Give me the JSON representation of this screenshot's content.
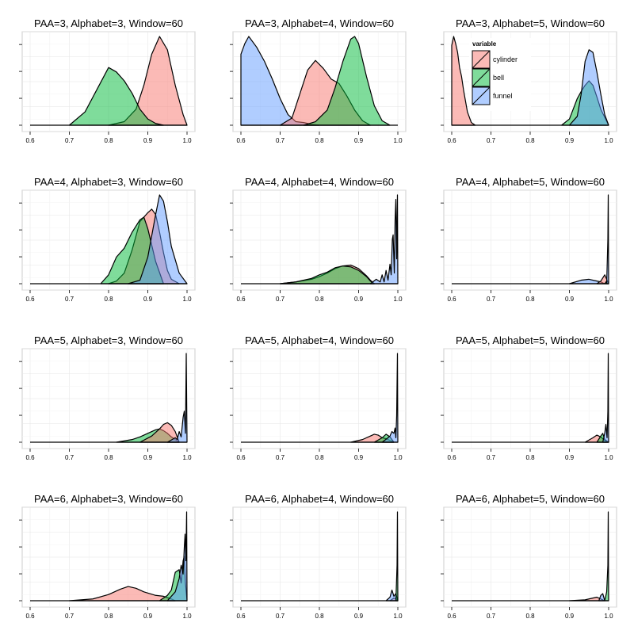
{
  "figure": {
    "colors": {
      "cylinder": "#F8766D",
      "bell": "#00BA38",
      "funnel": "#619CFF"
    },
    "fill_opacity": 0.5
  },
  "chart_data": [
    {
      "type": "area",
      "title": "PAA=3, Alphabet=3, Window=60",
      "xlim": [
        0.6,
        1.0
      ],
      "x_ticks": [
        "0.6",
        "0.7",
        "0.8",
        "0.9",
        "1.0"
      ],
      "grid": true,
      "y_ticks_labeled": false,
      "series": [
        {
          "name": "cylinder",
          "x": [
            0.8,
            0.84,
            0.87,
            0.89,
            0.91,
            0.93,
            0.95,
            0.97,
            0.99,
            1.0
          ],
          "y": [
            0,
            0.04,
            0.18,
            0.45,
            0.8,
            1.0,
            0.85,
            0.45,
            0.12,
            0
          ]
        },
        {
          "name": "bell",
          "x": [
            0.7,
            0.74,
            0.77,
            0.8,
            0.82,
            0.84,
            0.86,
            0.88,
            0.9,
            0.92,
            0.94
          ],
          "y": [
            0,
            0.15,
            0.4,
            0.65,
            0.6,
            0.5,
            0.36,
            0.18,
            0.07,
            0.02,
            0
          ]
        }
      ]
    },
    {
      "type": "area",
      "title": "PAA=3, Alphabet=4, Window=60",
      "xlim": [
        0.6,
        1.0
      ],
      "x_ticks": [
        "0.6",
        "0.7",
        "0.8",
        "0.9",
        "1.0"
      ],
      "grid": true,
      "y_ticks_labeled": false,
      "series": [
        {
          "name": "funnel",
          "x": [
            0.6,
            0.61,
            0.62,
            0.64,
            0.66,
            0.68,
            0.7,
            0.72,
            0.74,
            0.76,
            0.78,
            0.8
          ],
          "y": [
            0.8,
            0.92,
            1.0,
            0.88,
            0.72,
            0.52,
            0.3,
            0.12,
            0.04,
            0.03,
            0.01,
            0
          ]
        },
        {
          "name": "cylinder",
          "x": [
            0.7,
            0.73,
            0.75,
            0.77,
            0.79,
            0.81,
            0.83,
            0.85,
            0.87,
            0.89,
            0.91,
            0.93
          ],
          "y": [
            0,
            0.08,
            0.35,
            0.62,
            0.73,
            0.64,
            0.52,
            0.47,
            0.33,
            0.17,
            0.05,
            0
          ]
        },
        {
          "name": "bell",
          "x": [
            0.76,
            0.79,
            0.82,
            0.84,
            0.86,
            0.88,
            0.89,
            0.9,
            0.92,
            0.94,
            0.96,
            0.98
          ],
          "y": [
            0,
            0.04,
            0.17,
            0.42,
            0.72,
            0.97,
            1.0,
            0.92,
            0.55,
            0.22,
            0.05,
            0
          ]
        }
      ]
    },
    {
      "type": "area",
      "title": "PAA=3, Alphabet=5, Window=60",
      "xlim": [
        0.6,
        1.0
      ],
      "x_ticks": [
        "0.6",
        "0.7",
        "0.8",
        "0.9",
        "1.0"
      ],
      "grid": true,
      "y_ticks_labeled": false,
      "legend": {
        "title": "variable",
        "placement": "inside-top-left",
        "items": [
          "cylinder",
          "bell",
          "funnel"
        ]
      },
      "series": [
        {
          "name": "cylinder",
          "x": [
            0.6,
            0.605,
            0.61,
            0.615,
            0.62,
            0.625,
            0.63,
            0.64,
            0.65,
            0.66
          ],
          "y": [
            0.9,
            1.0,
            0.92,
            0.82,
            0.65,
            0.55,
            0.4,
            0.15,
            0.03,
            0
          ]
        },
        {
          "name": "bell",
          "x": [
            0.88,
            0.9,
            0.92,
            0.93,
            0.94,
            0.95,
            0.96,
            0.97,
            0.98,
            1.0
          ],
          "y": [
            0,
            0.07,
            0.3,
            0.38,
            0.45,
            0.5,
            0.45,
            0.32,
            0.18,
            0
          ]
        },
        {
          "name": "funnel",
          "x": [
            0.9,
            0.92,
            0.93,
            0.94,
            0.95,
            0.96,
            0.97,
            0.98,
            0.99,
            1.0
          ],
          "y": [
            0,
            0.1,
            0.35,
            0.72,
            0.85,
            0.82,
            0.6,
            0.35,
            0.12,
            0
          ]
        }
      ]
    },
    {
      "type": "area",
      "title": "PAA=4, Alphabet=3, Window=60",
      "xlim": [
        0.6,
        1.0
      ],
      "x_ticks": [
        "0.6",
        "0.7",
        "0.8",
        "0.9",
        "1.0"
      ],
      "grid": true,
      "y_ticks_labeled": false,
      "series": [
        {
          "name": "cylinder",
          "x": [
            0.8,
            0.82,
            0.84,
            0.86,
            0.88,
            0.9,
            0.91,
            0.92,
            0.93,
            0.94,
            0.95,
            0.96,
            0.98
          ],
          "y": [
            0,
            0.03,
            0.12,
            0.38,
            0.7,
            0.8,
            0.84,
            0.78,
            0.58,
            0.35,
            0.15,
            0.05,
            0
          ]
        },
        {
          "name": "bell",
          "x": [
            0.78,
            0.8,
            0.82,
            0.84,
            0.86,
            0.88,
            0.89,
            0.9,
            0.92,
            0.94
          ],
          "y": [
            0,
            0.1,
            0.3,
            0.4,
            0.58,
            0.72,
            0.75,
            0.62,
            0.25,
            0
          ]
        },
        {
          "name": "funnel",
          "x": [
            0.85,
            0.88,
            0.9,
            0.92,
            0.93,
            0.94,
            0.95,
            0.96,
            0.98,
            1.0
          ],
          "y": [
            0,
            0.04,
            0.3,
            0.78,
            1.0,
            0.93,
            0.7,
            0.42,
            0.12,
            0
          ]
        }
      ]
    },
    {
      "type": "area",
      "title": "PAA=4, Alphabet=4, Window=60",
      "xlim": [
        0.6,
        1.0
      ],
      "x_ticks": [
        "0.6",
        "0.7",
        "0.8",
        "0.9",
        "1.0"
      ],
      "grid": true,
      "y_ticks_labeled": false,
      "series": [
        {
          "name": "cylinder",
          "x": [
            0.7,
            0.74,
            0.78,
            0.8,
            0.82,
            0.84,
            0.86,
            0.88,
            0.9,
            0.92,
            0.93,
            0.94
          ],
          "y": [
            0,
            0.02,
            0.05,
            0.08,
            0.12,
            0.17,
            0.2,
            0.21,
            0.17,
            0.09,
            0.04,
            0
          ]
        },
        {
          "name": "bell",
          "x": [
            0.7,
            0.74,
            0.78,
            0.8,
            0.82,
            0.84,
            0.86,
            0.88,
            0.9,
            0.92,
            0.93,
            0.94
          ],
          "y": [
            0,
            0.02,
            0.06,
            0.1,
            0.13,
            0.18,
            0.2,
            0.19,
            0.15,
            0.08,
            0.03,
            0
          ]
        },
        {
          "name": "funnel",
          "x": [
            0.93,
            0.945,
            0.955,
            0.96,
            0.965,
            0.97,
            0.975,
            0.98,
            0.983,
            0.986,
            0.988,
            0.991,
            0.993,
            0.995,
            0.997,
            0.999,
            1.0
          ],
          "y": [
            0,
            0.05,
            0.02,
            0.1,
            0.02,
            0.15,
            0.04,
            0.22,
            0.1,
            0.5,
            0.55,
            0.12,
            0.72,
            0.95,
            0.28,
            1.0,
            0
          ]
        }
      ]
    },
    {
      "type": "area",
      "title": "PAA=4, Alphabet=5, Window=60",
      "xlim": [
        0.6,
        1.0
      ],
      "x_ticks": [
        "0.6",
        "0.7",
        "0.8",
        "0.9",
        "1.0"
      ],
      "grid": true,
      "y_ticks_labeled": false,
      "series": [
        {
          "name": "funnel",
          "x": [
            0.9,
            0.93,
            0.95,
            0.97,
            0.98,
            0.99
          ],
          "y": [
            0,
            0.04,
            0.05,
            0.03,
            0.02,
            0
          ]
        },
        {
          "name": "cylinder",
          "x": [
            0.97,
            0.98,
            0.99,
            0.995,
            1.0
          ],
          "y": [
            0,
            0.03,
            0.1,
            0.05,
            0
          ]
        },
        {
          "name": "bell",
          "x": [
            0.99,
            0.995,
            0.998,
            1.0
          ],
          "y": [
            0,
            0.03,
            0.02,
            0
          ]
        },
        {
          "name": "funnel",
          "x": [
            0.995,
            0.998,
            0.999,
            1.0
          ],
          "y": [
            0,
            0.5,
            1.0,
            0
          ]
        }
      ]
    },
    {
      "type": "area",
      "title": "PAA=5, Alphabet=3, Window=60",
      "xlim": [
        0.6,
        1.0
      ],
      "x_ticks": [
        "0.6",
        "0.7",
        "0.8",
        "0.9",
        "1.0"
      ],
      "grid": true,
      "y_ticks_labeled": false,
      "series": [
        {
          "name": "bell",
          "x": [
            0.82,
            0.86,
            0.88,
            0.9,
            0.92,
            0.93,
            0.94,
            0.95,
            0.96,
            0.98
          ],
          "y": [
            0,
            0.03,
            0.06,
            0.1,
            0.14,
            0.15,
            0.13,
            0.1,
            0.06,
            0
          ]
        },
        {
          "name": "cylinder",
          "x": [
            0.88,
            0.91,
            0.93,
            0.94,
            0.95,
            0.96,
            0.97,
            0.98
          ],
          "y": [
            0,
            0.07,
            0.15,
            0.2,
            0.22,
            0.19,
            0.12,
            0
          ]
        },
        {
          "name": "funnel",
          "x": [
            0.95,
            0.97,
            0.975,
            0.98,
            0.985,
            0.99,
            0.993,
            0.996,
            0.998,
            1.0
          ],
          "y": [
            0,
            0.05,
            0.03,
            0.12,
            0.06,
            0.28,
            0.35,
            0.1,
            1.0,
            0
          ]
        }
      ]
    },
    {
      "type": "area",
      "title": "PAA=5, Alphabet=4, Window=60",
      "xlim": [
        0.6,
        1.0
      ],
      "x_ticks": [
        "0.6",
        "0.7",
        "0.8",
        "0.9",
        "1.0"
      ],
      "grid": true,
      "y_ticks_labeled": false,
      "series": [
        {
          "name": "cylinder",
          "x": [
            0.88,
            0.91,
            0.93,
            0.94,
            0.95,
            0.96,
            0.97,
            0.98,
            0.99
          ],
          "y": [
            0,
            0.03,
            0.07,
            0.09,
            0.08,
            0.05,
            0.04,
            0.02,
            0
          ]
        },
        {
          "name": "bell",
          "x": [
            0.94,
            0.96,
            0.97,
            0.98,
            0.99
          ],
          "y": [
            0,
            0.05,
            0.09,
            0.06,
            0
          ]
        },
        {
          "name": "funnel",
          "x": [
            0.96,
            0.975,
            0.98,
            0.985,
            0.99,
            0.993,
            0.995,
            0.997,
            0.999,
            1.0
          ],
          "y": [
            0,
            0.05,
            0.07,
            0.12,
            0.1,
            0.16,
            0.05,
            0.3,
            1.0,
            0
          ]
        }
      ]
    },
    {
      "type": "area",
      "title": "PAA=5, Alphabet=5, Window=60",
      "xlim": [
        0.6,
        1.0
      ],
      "x_ticks": [
        "0.6",
        "0.7",
        "0.8",
        "0.9",
        "1.0"
      ],
      "grid": true,
      "y_ticks_labeled": false,
      "series": [
        {
          "name": "cylinder",
          "x": [
            0.94,
            0.96,
            0.97,
            0.98,
            0.99,
            1.0
          ],
          "y": [
            0,
            0.05,
            0.08,
            0.06,
            0.02,
            0
          ]
        },
        {
          "name": "bell",
          "x": [
            0.97,
            0.98,
            0.985,
            0.99,
            1.0
          ],
          "y": [
            0,
            0.07,
            0.1,
            0.03,
            0
          ]
        },
        {
          "name": "funnel",
          "x": [
            0.985,
            0.99,
            0.993,
            0.996,
            0.998,
            0.999,
            1.0
          ],
          "y": [
            0,
            0.1,
            0.2,
            0.05,
            0.35,
            1.0,
            0
          ]
        }
      ]
    },
    {
      "type": "area",
      "title": "PAA=6, Alphabet=3, Window=60",
      "xlim": [
        0.6,
        1.0
      ],
      "x_ticks": [
        "0.6",
        "0.7",
        "0.8",
        "0.9",
        "1.0"
      ],
      "grid": true,
      "y_ticks_labeled": false,
      "series": [
        {
          "name": "cylinder",
          "x": [
            0.7,
            0.76,
            0.8,
            0.83,
            0.85,
            0.87,
            0.89,
            0.92,
            0.94,
            0.96,
            0.97
          ],
          "y": [
            0,
            0.02,
            0.07,
            0.13,
            0.16,
            0.14,
            0.1,
            0.06,
            0.05,
            0.02,
            0
          ]
        },
        {
          "name": "bell",
          "x": [
            0.93,
            0.95,
            0.96,
            0.97,
            0.98,
            0.985,
            0.99,
            0.993,
            0.996,
            1.0
          ],
          "y": [
            0,
            0.06,
            0.12,
            0.32,
            0.35,
            0.2,
            0.45,
            0.5,
            0.2,
            0
          ]
        },
        {
          "name": "funnel",
          "x": [
            0.95,
            0.97,
            0.98,
            0.985,
            0.99,
            0.993,
            0.995,
            0.997,
            0.999,
            1.0
          ],
          "y": [
            0,
            0.1,
            0.25,
            0.4,
            0.3,
            0.6,
            0.75,
            0.45,
            1.0,
            0
          ]
        }
      ]
    },
    {
      "type": "area",
      "title": "PAA=6, Alphabet=4, Window=60",
      "xlim": [
        0.6,
        1.0
      ],
      "x_ticks": [
        "0.6",
        "0.7",
        "0.8",
        "0.9",
        "1.0"
      ],
      "grid": true,
      "y_ticks_labeled": false,
      "series": [
        {
          "name": "cylinder",
          "x": [
            0.98,
            0.99,
            0.995,
            1.0
          ],
          "y": [
            0,
            0.03,
            0.02,
            0
          ]
        },
        {
          "name": "funnel",
          "x": [
            0.97,
            0.98,
            0.985,
            0.99,
            0.995,
            1.0
          ],
          "y": [
            0,
            0.04,
            0.12,
            0.05,
            0.08,
            0
          ]
        },
        {
          "name": "bell",
          "x": [
            0.995,
            0.998,
            0.999,
            1.0
          ],
          "y": [
            0,
            0.4,
            1.0,
            0
          ]
        }
      ]
    },
    {
      "type": "area",
      "title": "PAA=6, Alphabet=5, Window=60",
      "xlim": [
        0.6,
        1.0
      ],
      "x_ticks": [
        "0.6",
        "0.7",
        "0.8",
        "0.9",
        "1.0"
      ],
      "grid": true,
      "y_ticks_labeled": false,
      "series": [
        {
          "name": "cylinder",
          "x": [
            0.9,
            0.94,
            0.96,
            0.97,
            0.98,
            0.99
          ],
          "y": [
            0,
            0.01,
            0.03,
            0.04,
            0.02,
            0
          ]
        },
        {
          "name": "funnel",
          "x": [
            0.975,
            0.98,
            0.985,
            0.99
          ],
          "y": [
            0,
            0.06,
            0.08,
            0
          ]
        },
        {
          "name": "bell",
          "x": [
            0.99,
            0.995,
            0.998,
            0.999,
            1.0
          ],
          "y": [
            0,
            0.1,
            0.4,
            1.0,
            0
          ]
        }
      ]
    }
  ]
}
